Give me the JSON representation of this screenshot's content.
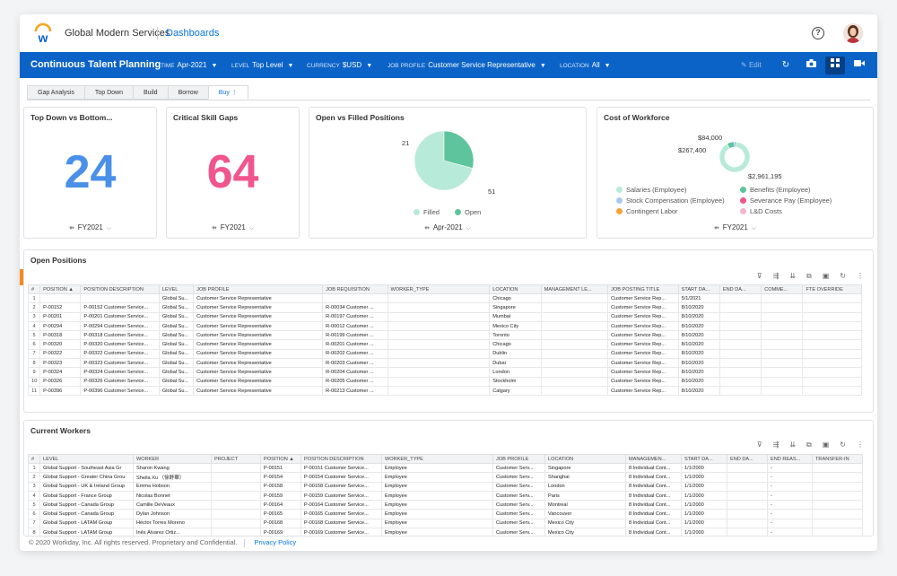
{
  "header": {
    "org_name": "Global Modern Services",
    "breadcrumb": "Dashboards",
    "help_icon": "question-circle-icon"
  },
  "toolbar": {
    "title": "Continuous Talent Planning",
    "filters": [
      {
        "key": "TIME",
        "value": "Apr-2021"
      },
      {
        "key": "LEVEL",
        "value": "Top Level"
      },
      {
        "key": "CURRENCY",
        "value": "$USD"
      },
      {
        "key": "JOB PROFILE",
        "value": "Customer Service Representative"
      },
      {
        "key": "LOCATION",
        "value": "All"
      }
    ],
    "edit_label": "Edit"
  },
  "tabs": [
    "Gap Analysis",
    "Top Down",
    "Build",
    "Borrow",
    "Buy"
  ],
  "active_tab": "Buy",
  "cards": {
    "topdown": {
      "title": "Top Down vs Bottom...",
      "value": "24",
      "footer": "FY2021",
      "color": "#4a90e8"
    },
    "critical": {
      "title": "Critical Skill Gaps",
      "value": "64",
      "footer": "FY2021",
      "color": "#f0568c"
    },
    "openfilled": {
      "title": "Open vs Filled Positions",
      "footer": "Apr-2021",
      "open_value": "21",
      "filled_value": "51",
      "legend": [
        "Filled",
        "Open"
      ]
    },
    "cost": {
      "title": "Cost of Workforce",
      "footer": "FY2021",
      "labels": [
        "$84,000",
        "$267,400",
        "$2,961,195"
      ],
      "legend": [
        "Salaries (Employee)",
        "Benefits (Employee)",
        "Stock Compensation (Employee)",
        "Severance Pay (Employee)",
        "Contingent Labor",
        "L&D Costs"
      ]
    }
  },
  "chart_data": [
    {
      "type": "pie",
      "title": "Open vs Filled Positions",
      "categories": [
        "Filled",
        "Open"
      ],
      "values": [
        51,
        21
      ],
      "colors": [
        "#b7ead9",
        "#5ec49d"
      ]
    },
    {
      "type": "pie",
      "title": "Cost of Workforce",
      "categories": [
        "Salaries (Employee)",
        "Benefits (Employee)",
        "Stock Compensation (Employee)",
        "Severance Pay (Employee)",
        "Contingent Labor",
        "L&D Costs"
      ],
      "values": [
        2961195,
        267400,
        84000,
        0,
        0,
        0
      ],
      "colors": [
        "#b7ead9",
        "#5ec49d",
        "#a9c8f0",
        "#f0568c",
        "#f5a43a",
        "#f8b4cd"
      ]
    }
  ],
  "open_positions": {
    "title": "Open Positions",
    "columns": [
      "#",
      "POSITION ▲",
      "POSITION DESCRIPTION",
      "LEVEL",
      "JOB PROFILE",
      "JOB REQUISITION",
      "WORKER_TYPE",
      "LOCATION",
      "MANAGEMENT LE...",
      "JOB POSTING TITLE",
      "START DA...",
      "END DA...",
      "COMME...",
      "FTE OVERRIDE"
    ],
    "rows": [
      [
        "1",
        "",
        "",
        "Global Su...",
        "Customer Service Representative",
        "",
        "",
        "Chicago",
        "",
        "Customer Service Rep...",
        "5/1/2021",
        "",
        "",
        ""
      ],
      [
        "2",
        "P-00152",
        "P-00152 Customer Service...",
        "Global Su...",
        "Customer Service Representative",
        "R-00034 Customer ...",
        "",
        "Singapore",
        "",
        "Customer Service Rep...",
        "8/10/2020",
        "",
        "",
        ""
      ],
      [
        "3",
        "P-00201",
        "P-00201 Customer Service...",
        "Global Su...",
        "Customer Service Representative",
        "R-00197 Customer ...",
        "",
        "Mumbai",
        "",
        "Customer Service Rep...",
        "8/10/2020",
        "",
        "",
        ""
      ],
      [
        "4",
        "P-00294",
        "P-00294 Customer Service...",
        "Global Su...",
        "Customer Service Representative",
        "R-00012 Customer ...",
        "",
        "Mexico City",
        "",
        "Customer Service Rep...",
        "8/10/2020",
        "",
        "",
        ""
      ],
      [
        "5",
        "P-00318",
        "P-00318 Customer Service...",
        "Global Su...",
        "Customer Service Representative",
        "R-00199 Customer ...",
        "",
        "Toronto",
        "",
        "Customer Service Rep...",
        "8/10/2020",
        "",
        "",
        ""
      ],
      [
        "6",
        "P-00320",
        "P-00320 Customer Service...",
        "Global Su...",
        "Customer Service Representative",
        "R-00201 Customer ...",
        "",
        "Chicago",
        "",
        "Customer Service Rep...",
        "8/10/2020",
        "",
        "",
        ""
      ],
      [
        "7",
        "P-00322",
        "P-00322 Customer Service...",
        "Global Su...",
        "Customer Service Representative",
        "R-00202 Customer ...",
        "",
        "Dublin",
        "",
        "Customer Service Rep...",
        "8/10/2020",
        "",
        "",
        ""
      ],
      [
        "8",
        "P-00323",
        "P-00323 Customer Service...",
        "Global Su...",
        "Customer Service Representative",
        "R-00203 Customer ...",
        "",
        "Dubai",
        "",
        "Customer Service Rep...",
        "8/10/2020",
        "",
        "",
        ""
      ],
      [
        "9",
        "P-00324",
        "P-00324 Customer Service...",
        "Global Su...",
        "Customer Service Representative",
        "R-00204 Customer ...",
        "",
        "London",
        "",
        "Customer Service Rep...",
        "8/10/2020",
        "",
        "",
        ""
      ],
      [
        "10",
        "P-00326",
        "P-00326 Customer Service...",
        "Global Su...",
        "Customer Service Representative",
        "R-00205 Customer ...",
        "",
        "Stockholm",
        "",
        "Customer Service Rep...",
        "8/10/2020",
        "",
        "",
        ""
      ],
      [
        "11",
        "P-00396",
        "P-00396 Customer Service...",
        "Global Su...",
        "Customer Service Representative",
        "R-00213 Customer ...",
        "",
        "Calgary",
        "",
        "Customer Service Rep...",
        "8/10/2020",
        "",
        "",
        ""
      ]
    ]
  },
  "current_workers": {
    "title": "Current Workers",
    "columns": [
      "#",
      "LEVEL",
      "WORKER",
      "PROJECT",
      "POSITION ▲",
      "POSITION DESCRIPTION",
      "WORKER_TYPE",
      "JOB PROFILE",
      "LOCATION",
      "MANAGEMEN...",
      "START DA...",
      "END DA...",
      "END REAS...",
      "TRANSFER-IN"
    ],
    "rows": [
      [
        "1",
        "Global Support - Southeast Asia Gr",
        "Sharon Kwang",
        "",
        "P-00151",
        "P-00151 Customer Service...",
        "Employee",
        "Customer Serv...",
        "Singapore",
        "8 Individual Cont...",
        "1/1/2000",
        "",
        "-",
        ""
      ],
      [
        "2",
        "Global Support - Greater China Grou",
        "Sheila Xu （徐舒華）",
        "",
        "P-00154",
        "P-00154 Customer Service...",
        "Employee",
        "Customer Serv...",
        "Shanghai",
        "8 Individual Cont...",
        "1/1/2000",
        "",
        "-",
        ""
      ],
      [
        "3",
        "Global Support - UK & Ireland Group",
        "Emma Hobson",
        "",
        "P-00158",
        "P-00158 Customer Service...",
        "Employee",
        "Customer Serv...",
        "London",
        "8 Individual Cont...",
        "1/1/2000",
        "",
        "-",
        ""
      ],
      [
        "4",
        "Global Support - France Group",
        "Nicolas Bonnet",
        "",
        "P-00159",
        "P-00159 Customer Service...",
        "Employee",
        "Customer Serv...",
        "Paris",
        "8 Individual Cont...",
        "1/1/2000",
        "",
        "-",
        ""
      ],
      [
        "5",
        "Global Support - Canada Group",
        "Camille DeVeaux",
        "",
        "P-00164",
        "P-00164 Customer Service...",
        "Employee",
        "Customer Serv...",
        "Montreal",
        "8 Individual Cont...",
        "1/1/2000",
        "",
        "-",
        ""
      ],
      [
        "6",
        "Global Support - Canada Group",
        "Dylan Johnson",
        "",
        "P-00165",
        "P-00165 Customer Service...",
        "Employee",
        "Customer Serv...",
        "Vancouver",
        "8 Individual Cont...",
        "1/1/2000",
        "",
        "-",
        ""
      ],
      [
        "7",
        "Global Support - LATAM Group",
        "Héctor Torres Moreno",
        "",
        "P-00168",
        "P-00168 Customer Service...",
        "Employee",
        "Customer Serv...",
        "Mexico City",
        "8 Individual Cont...",
        "1/1/2000",
        "",
        "-",
        ""
      ],
      [
        "8",
        "Global Support - LATAM Group",
        "Inês Álvarez Ortiz...",
        "",
        "P-00169",
        "P-00169 Customer Service...",
        "Employee",
        "Customer Serv...",
        "Mexico City",
        "8 Individual Cont...",
        "1/1/2000",
        "",
        "-",
        ""
      ]
    ]
  },
  "footer": {
    "copyright": "© 2020 Workday, Inc. All rights reserved. Proprietary and Confidential.",
    "privacy": "Privacy Policy"
  }
}
